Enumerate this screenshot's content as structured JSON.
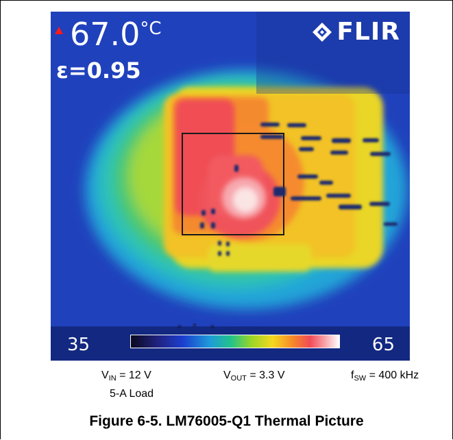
{
  "thermal_image": {
    "temperature_reading": "67.0",
    "temperature_unit": "°C",
    "emissivity": "ε=0.95",
    "brand": "FLIR",
    "brand_icon": "flir-diamond-icon",
    "alarm_icon": "red-triangle-icon",
    "scale_min": "35",
    "scale_max": "65",
    "palette": [
      "#0a0a1e",
      "#1c3fd0",
      "#22c38a",
      "#f5d820",
      "#f24b58",
      "#ffffff"
    ]
  },
  "conditions": {
    "vin_symbol": "V",
    "vin_sub": "IN",
    "vin_value": " = 12 V",
    "vout_symbol": "V",
    "vout_sub": "OUT",
    "vout_value": " = 3.3 V",
    "fsw_symbol": "f",
    "fsw_sub": "SW",
    "fsw_value": " = 400 kHz",
    "load": "5-A Load"
  },
  "figure": {
    "title": "Figure 6-5. LM76005-Q1 Thermal Picture"
  }
}
